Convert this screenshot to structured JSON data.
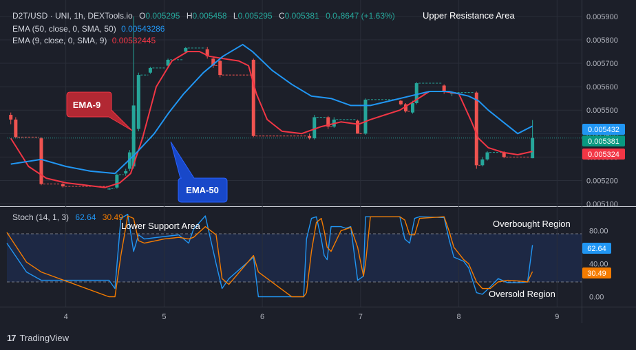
{
  "header": {
    "title_line": "D2T/USD · UNI, 1h, DEXTools.io",
    "ohlc": [
      {
        "key": "O",
        "value": "0.005295"
      },
      {
        "key": "H",
        "value": "0.005458"
      },
      {
        "key": "L",
        "value": "0.005295"
      },
      {
        "key": "C",
        "value": "0.005381"
      }
    ],
    "change": "0.0₃8647 (+1.63%)",
    "ema50_label": "EMA (50, close, 0, SMA, 50)",
    "ema50_value": "0.00543286",
    "ema9_label": "EMA (9, close, 0, SMA, 9)",
    "ema9_value": "0.00532445"
  },
  "annotations": {
    "upper_resistance": "Upper Resistance Area",
    "lower_support": "Lower Support Area",
    "overbought": "Overbought Region",
    "oversold": "Oversold Region",
    "ema9_callout": "EMA-9",
    "ema50_callout": "EMA-50"
  },
  "price_badges": {
    "ema50": "0.005432",
    "close": "0.005381",
    "ema9": "0.005324"
  },
  "stoch": {
    "label": "Stoch (14, 1, 3)",
    "k_value": "62.64",
    "d_value": "30.49",
    "k_badge": "62.64",
    "d_badge": "30.49"
  },
  "footer": {
    "logo_text": "17",
    "brand": "TradingView"
  },
  "colors": {
    "background": "#1c1f29",
    "up_candle": "#26a69a",
    "down_candle": "#ef5350",
    "ema9": "#f23645",
    "ema50": "#2196f3",
    "stoch_k": "#2196f3",
    "stoch_d": "#f57c00",
    "close_line": "#26a69a"
  },
  "chart_data": [
    {
      "type": "candlestick",
      "title": "D2T/USD · UNI, 1h, DEXTools.io",
      "x_ticks": [
        "4",
        "5",
        "6",
        "7",
        "8",
        "9"
      ],
      "y_ticks": [
        "0.005100",
        "0.005200",
        "0.005300",
        "0.005400",
        "0.005500",
        "0.005600",
        "0.005700",
        "0.005800",
        "0.005900"
      ],
      "ylim": [
        0.00509,
        0.00597
      ],
      "xlim": [
        3.4,
        9.25
      ],
      "candles": [
        {
          "x": 3.44,
          "o": 0.00548,
          "h": 0.00549,
          "l": 0.00544,
          "c": 0.00546
        },
        {
          "x": 3.49,
          "o": 0.00546,
          "h": 0.00547,
          "l": 0.00538,
          "c": 0.005385
        },
        {
          "x": 3.75,
          "o": 0.00538,
          "h": 0.005385,
          "l": 0.00518,
          "c": 0.005185
        },
        {
          "x": 3.97,
          "o": 0.005185,
          "h": 0.00519,
          "l": 0.00517,
          "c": 0.005175
        },
        {
          "x": 4.44,
          "o": 0.005165,
          "h": 0.00517,
          "l": 0.00516,
          "c": 0.005165
        },
        {
          "x": 4.52,
          "o": 0.00517,
          "h": 0.00523,
          "l": 0.005165,
          "c": 0.005225
        },
        {
          "x": 4.61,
          "o": 0.00523,
          "h": 0.00525,
          "l": 0.00522,
          "c": 0.00524
        },
        {
          "x": 4.65,
          "o": 0.00525,
          "h": 0.00533,
          "l": 0.00524,
          "c": 0.00532
        },
        {
          "x": 4.69,
          "o": 0.00526,
          "h": 0.0059,
          "l": 0.00525,
          "c": 0.00552
        },
        {
          "x": 4.74,
          "o": 0.00542,
          "h": 0.00566,
          "l": 0.00541,
          "c": 0.00565
        },
        {
          "x": 4.86,
          "o": 0.00566,
          "h": 0.005685,
          "l": 0.005655,
          "c": 0.00568
        },
        {
          "x": 5.04,
          "o": 0.00569,
          "h": 0.00572,
          "l": 0.005685,
          "c": 0.005715
        },
        {
          "x": 5.22,
          "o": 0.00575,
          "h": 0.00577,
          "l": 0.005745,
          "c": 0.005765
        },
        {
          "x": 5.44,
          "o": 0.00576,
          "h": 0.00577,
          "l": 0.00572,
          "c": 0.00573
        },
        {
          "x": 5.5,
          "o": 0.00572,
          "h": 0.005725,
          "l": 0.00568,
          "c": 0.00569
        },
        {
          "x": 5.57,
          "o": 0.00571,
          "h": 0.005715,
          "l": 0.00564,
          "c": 0.00565
        },
        {
          "x": 5.91,
          "o": 0.005715,
          "h": 0.00572,
          "l": 0.005385,
          "c": 0.00539
        },
        {
          "x": 6.48,
          "o": 0.00539,
          "h": 0.0054,
          "l": 0.005375,
          "c": 0.00538
        },
        {
          "x": 6.53,
          "o": 0.00538,
          "h": 0.00548,
          "l": 0.005375,
          "c": 0.00547
        },
        {
          "x": 6.67,
          "o": 0.00547,
          "h": 0.005475,
          "l": 0.00542,
          "c": 0.00543
        },
        {
          "x": 6.73,
          "o": 0.00543,
          "h": 0.00547,
          "l": 0.005425,
          "c": 0.00546
        },
        {
          "x": 6.97,
          "o": 0.005455,
          "h": 0.00546,
          "l": 0.0054,
          "c": 0.0054
        },
        {
          "x": 7.05,
          "o": 0.0054,
          "h": 0.00555,
          "l": 0.005395,
          "c": 0.005545
        },
        {
          "x": 7.41,
          "o": 0.00554,
          "h": 0.005545,
          "l": 0.00552,
          "c": 0.005525
        },
        {
          "x": 7.46,
          "o": 0.005525,
          "h": 0.00553,
          "l": 0.00549,
          "c": 0.005495
        },
        {
          "x": 7.53,
          "o": 0.00549,
          "h": 0.00554,
          "l": 0.005485,
          "c": 0.00553
        },
        {
          "x": 7.57,
          "o": 0.00553,
          "h": 0.00562,
          "l": 0.005525,
          "c": 0.005615
        },
        {
          "x": 7.85,
          "o": 0.005605,
          "h": 0.00561,
          "l": 0.00557,
          "c": 0.00558
        },
        {
          "x": 7.93,
          "o": 0.00557,
          "h": 0.00558,
          "l": 0.00556,
          "c": 0.005575
        },
        {
          "x": 8.18,
          "o": 0.005575,
          "h": 0.00558,
          "l": 0.00525,
          "c": 0.005265
        },
        {
          "x": 8.24,
          "o": 0.005265,
          "h": 0.0053,
          "l": 0.00526,
          "c": 0.00529
        },
        {
          "x": 8.29,
          "o": 0.00529,
          "h": 0.005325,
          "l": 0.005285,
          "c": 0.00532
        },
        {
          "x": 8.46,
          "o": 0.00532,
          "h": 0.005325,
          "l": 0.005295,
          "c": 0.0053
        },
        {
          "x": 8.75,
          "o": 0.005295,
          "h": 0.005458,
          "l": 0.005295,
          "c": 0.005381
        }
      ],
      "series": [
        {
          "name": "EMA (9, close, 0, SMA, 9)",
          "x": [
            3.44,
            3.62,
            3.8,
            4.0,
            4.2,
            4.4,
            4.55,
            4.66,
            4.78,
            4.92,
            5.08,
            5.24,
            5.36,
            5.46,
            5.6,
            5.76,
            5.86,
            5.94,
            6.05,
            6.2,
            6.4,
            6.6,
            6.8,
            6.98,
            7.1,
            7.25,
            7.4,
            7.55,
            7.7,
            7.85,
            8.0,
            8.12,
            8.2,
            8.3,
            8.45,
            8.6,
            8.75
          ],
          "values": [
            0.00538,
            0.00526,
            0.00521,
            0.00519,
            0.00518,
            0.00517,
            0.00519,
            0.00523,
            0.00538,
            0.0056,
            0.00571,
            0.00575,
            0.00575,
            0.00573,
            0.00572,
            0.00571,
            0.00569,
            0.00557,
            0.00546,
            0.00541,
            0.0054,
            0.00543,
            0.00545,
            0.00544,
            0.00546,
            0.00548,
            0.0055,
            0.00554,
            0.00558,
            0.00558,
            0.00557,
            0.00546,
            0.00538,
            0.00534,
            0.00532,
            0.00531,
            0.005324
          ]
        },
        {
          "name": "EMA (50, close, 0, SMA, 50)",
          "x": [
            3.44,
            3.75,
            4.0,
            4.25,
            4.5,
            4.7,
            4.9,
            5.05,
            5.2,
            5.4,
            5.6,
            5.8,
            5.9,
            6.1,
            6.3,
            6.5,
            6.7,
            6.9,
            7.1,
            7.3,
            7.5,
            7.7,
            7.9,
            8.1,
            8.2,
            8.3,
            8.45,
            8.6,
            8.75
          ],
          "values": [
            0.00527,
            0.00529,
            0.00526,
            0.00524,
            0.00523,
            0.00531,
            0.0054,
            0.00549,
            0.00557,
            0.00566,
            0.00573,
            0.00578,
            0.00575,
            0.00567,
            0.00561,
            0.00556,
            0.00555,
            0.00552,
            0.00552,
            0.00554,
            0.00556,
            0.00558,
            0.00558,
            0.00556,
            0.00554,
            0.0055,
            0.00545,
            0.0054,
            0.005432
          ]
        }
      ],
      "current_close": 0.005381
    },
    {
      "type": "line",
      "title": "Stoch (14, 1, 3)",
      "y_ticks": [
        "0.00",
        "40.00",
        "80.00"
      ],
      "ylim": [
        -12,
        108
      ],
      "overbought": 80,
      "oversold": 20,
      "series": [
        {
          "name": "%K",
          "x": [
            3.4,
            3.6,
            3.75,
            4.44,
            4.5,
            4.56,
            4.63,
            4.69,
            4.74,
            4.8,
            5.0,
            5.15,
            5.25,
            5.3,
            5.42,
            5.53,
            5.59,
            5.66,
            5.91,
            5.96,
            6.3,
            6.42,
            6.45,
            6.5,
            6.55,
            6.6,
            6.63,
            6.66,
            6.7,
            6.8,
            6.85,
            6.9,
            6.97,
            7.03,
            7.05,
            7.1,
            7.4,
            7.45,
            7.5,
            7.55,
            7.6,
            7.85,
            7.9,
            7.95,
            8.05,
            8.1,
            8.18,
            8.24,
            8.32,
            8.4,
            8.5,
            8.62,
            8.7,
            8.75
          ],
          "values": [
            65,
            30,
            20,
            20,
            10,
            95,
            100,
            55,
            75,
            70,
            73,
            75,
            65,
            82,
            98,
            40,
            10,
            22,
            48,
            0,
            0,
            0,
            70,
            95,
            97,
            70,
            50,
            45,
            85,
            85,
            83,
            85,
            20,
            25,
            97,
            97,
            97,
            70,
            65,
            95,
            97,
            96,
            70,
            48,
            43,
            35,
            5,
            3,
            12,
            22,
            17,
            17,
            18,
            62.64
          ]
        },
        {
          "name": "%D",
          "x": [
            3.4,
            3.6,
            3.75,
            4.44,
            4.5,
            4.56,
            4.63,
            4.69,
            4.74,
            4.8,
            5.0,
            5.15,
            5.25,
            5.3,
            5.42,
            5.53,
            5.59,
            5.66,
            5.91,
            5.96,
            6.3,
            6.42,
            6.45,
            6.5,
            6.55,
            6.6,
            6.63,
            6.66,
            6.7,
            6.8,
            6.85,
            6.9,
            6.97,
            7.03,
            7.05,
            7.1,
            7.4,
            7.45,
            7.5,
            7.55,
            7.6,
            7.85,
            7.9,
            7.95,
            8.05,
            8.1,
            8.18,
            8.24,
            8.32,
            8.4,
            8.5,
            8.62,
            8.7,
            8.75
          ],
          "values": [
            78,
            42,
            30,
            0,
            0,
            50,
            98,
            95,
            68,
            65,
            70,
            72,
            70,
            72,
            85,
            75,
            22,
            15,
            50,
            30,
            0,
            0,
            5,
            55,
            90,
            95,
            80,
            60,
            55,
            80,
            82,
            84,
            60,
            25,
            40,
            97,
            97,
            93,
            75,
            75,
            95,
            97,
            80,
            60,
            45,
            40,
            18,
            10,
            10,
            18,
            20,
            19,
            18,
            30.49
          ]
        }
      ]
    }
  ]
}
